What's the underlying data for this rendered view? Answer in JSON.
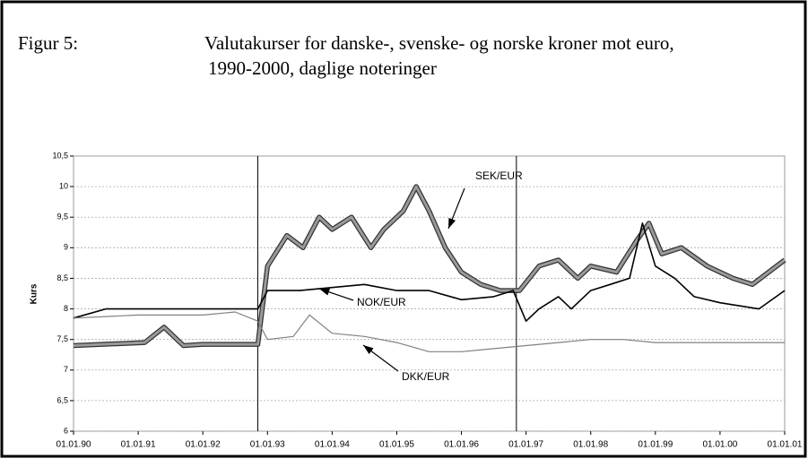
{
  "chart_data": {
    "type": "line",
    "figure_label": "Figur 5:",
    "title": [
      "Valutakurser for danske-, svenske- og norske kroner mot euro,",
      "1990-2000, daglige noteringer"
    ],
    "ylabel": "Kurs",
    "xlim": [
      1990,
      2001
    ],
    "xticks": [
      {
        "value": 1990,
        "label": "01.01.90"
      },
      {
        "value": 1991,
        "label": "01.01.91"
      },
      {
        "value": 1992,
        "label": "01.01.92"
      },
      {
        "value": 1993,
        "label": "01.01.93"
      },
      {
        "value": 1994,
        "label": "01.01.94"
      },
      {
        "value": 1995,
        "label": "01.01.95"
      },
      {
        "value": 1996,
        "label": "01.01.96"
      },
      {
        "value": 1997,
        "label": "01.01.97"
      },
      {
        "value": 1998,
        "label": "01.01.98"
      },
      {
        "value": 1999,
        "label": "01.01.99"
      },
      {
        "value": 2000,
        "label": "01.01.00"
      },
      {
        "value": 2001,
        "label": "01.01.01"
      }
    ],
    "ylim": [
      6,
      10.5
    ],
    "yticks": [
      6,
      {
        "value": 6.5,
        "label": "6,5"
      },
      7,
      {
        "value": 7.5,
        "label": "7,5"
      },
      8,
      {
        "value": 8.5,
        "label": "8,5"
      },
      9,
      {
        "value": 9.5,
        "label": "9,5"
      },
      10,
      {
        "value": 10.5,
        "label": "10,5"
      }
    ],
    "grid": true,
    "vlines": [
      1992.85,
      1996.85
    ],
    "series": [
      {
        "name": "SEK/EUR",
        "color": "#9a9a9a",
        "x": [
          1990,
          1991.1,
          1991.4,
          1991.7,
          1992.0,
          1992.5,
          1992.85,
          1993.0,
          1993.3,
          1993.55,
          1993.8,
          1994.0,
          1994.3,
          1994.6,
          1994.8,
          1995.1,
          1995.3,
          1995.5,
          1995.75,
          1996.0,
          1996.3,
          1996.6,
          1996.9,
          1997.2,
          1997.5,
          1997.8,
          1998.0,
          1998.4,
          1998.7,
          1998.9,
          1999.1,
          1999.4,
          1999.8,
          2000.2,
          2000.5,
          2001
        ],
        "values": [
          7.4,
          7.45,
          7.7,
          7.4,
          7.42,
          7.42,
          7.42,
          8.7,
          9.2,
          9.0,
          9.5,
          9.3,
          9.5,
          9.0,
          9.3,
          9.6,
          10.0,
          9.6,
          9.0,
          8.6,
          8.4,
          8.3,
          8.3,
          8.7,
          8.8,
          8.5,
          8.7,
          8.6,
          9.1,
          9.4,
          8.9,
          9.0,
          8.7,
          8.5,
          8.4,
          8.8
        ]
      },
      {
        "name": "NOK/EUR",
        "color": "#000000",
        "x": [
          1990,
          1990.5,
          1991,
          1992,
          1992.85,
          1993.0,
          1993.5,
          1994.0,
          1994.5,
          1995.0,
          1995.5,
          1996.0,
          1996.5,
          1996.8,
          1997.0,
          1997.2,
          1997.5,
          1997.7,
          1998.0,
          1998.3,
          1998.6,
          1998.8,
          1999.0,
          1999.3,
          1999.6,
          2000.0,
          2000.6,
          2001
        ],
        "values": [
          7.85,
          8.0,
          8.0,
          8.0,
          8.0,
          8.3,
          8.3,
          8.35,
          8.4,
          8.3,
          8.3,
          8.15,
          8.2,
          8.3,
          7.8,
          8.0,
          8.2,
          8.0,
          8.3,
          8.4,
          8.5,
          9.4,
          8.7,
          8.5,
          8.2,
          8.1,
          8.0,
          8.3
        ]
      },
      {
        "name": "DKK/EUR",
        "color": "#808080",
        "x": [
          1990,
          1991,
          1992,
          1992.5,
          1992.85,
          1993.0,
          1993.4,
          1993.65,
          1994.0,
          1994.5,
          1995.0,
          1995.5,
          1996.0,
          1996.5,
          1997.0,
          1997.5,
          1998.0,
          1998.5,
          1999.0,
          2000,
          2001
        ],
        "values": [
          7.85,
          7.9,
          7.9,
          7.95,
          7.8,
          7.5,
          7.55,
          7.9,
          7.6,
          7.55,
          7.45,
          7.3,
          7.3,
          7.35,
          7.4,
          7.45,
          7.5,
          7.5,
          7.45,
          7.45,
          7.45
        ]
      }
    ]
  }
}
